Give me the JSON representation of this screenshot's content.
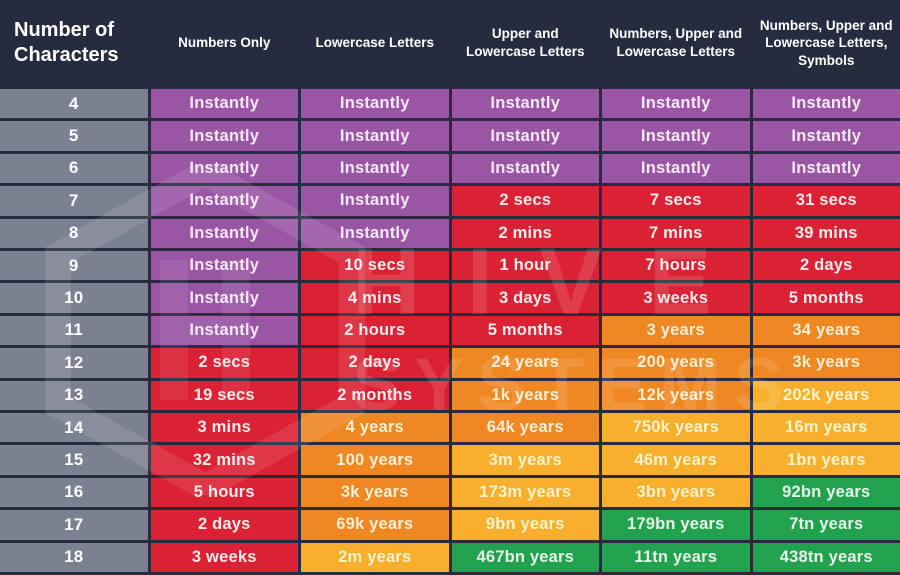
{
  "colors": {
    "background": "#262b40",
    "char_column_gray": "#7c8191",
    "purple": "#9a55a5",
    "red": "#db2134",
    "orange": "#ef8722",
    "yellow": "#f8af2d",
    "green": "#22a14f",
    "header_text": "#ffffff"
  },
  "watermark": {
    "line1": "HIVE",
    "line2": "SYSTEMS"
  },
  "chart_data": {
    "type": "table",
    "columns": [
      "Number of Characters",
      "Numbers Only",
      "Lowercase Letters",
      "Upper and Lowercase Letters",
      "Numbers, Upper and Lowercase Letters",
      "Numbers, Upper and Lowercase Letters, Symbols"
    ],
    "rows": [
      {
        "chars": "4",
        "cells": [
          {
            "text": "Instantly",
            "level": "purple"
          },
          {
            "text": "Instantly",
            "level": "purple"
          },
          {
            "text": "Instantly",
            "level": "purple"
          },
          {
            "text": "Instantly",
            "level": "purple"
          },
          {
            "text": "Instantly",
            "level": "purple"
          }
        ]
      },
      {
        "chars": "5",
        "cells": [
          {
            "text": "Instantly",
            "level": "purple"
          },
          {
            "text": "Instantly",
            "level": "purple"
          },
          {
            "text": "Instantly",
            "level": "purple"
          },
          {
            "text": "Instantly",
            "level": "purple"
          },
          {
            "text": "Instantly",
            "level": "purple"
          }
        ]
      },
      {
        "chars": "6",
        "cells": [
          {
            "text": "Instantly",
            "level": "purple"
          },
          {
            "text": "Instantly",
            "level": "purple"
          },
          {
            "text": "Instantly",
            "level": "purple"
          },
          {
            "text": "Instantly",
            "level": "purple"
          },
          {
            "text": "Instantly",
            "level": "purple"
          }
        ]
      },
      {
        "chars": "7",
        "cells": [
          {
            "text": "Instantly",
            "level": "purple"
          },
          {
            "text": "Instantly",
            "level": "purple"
          },
          {
            "text": "2 secs",
            "level": "red"
          },
          {
            "text": "7 secs",
            "level": "red"
          },
          {
            "text": "31 secs",
            "level": "red"
          }
        ]
      },
      {
        "chars": "8",
        "cells": [
          {
            "text": "Instantly",
            "level": "purple"
          },
          {
            "text": "Instantly",
            "level": "purple"
          },
          {
            "text": "2 mins",
            "level": "red"
          },
          {
            "text": "7 mins",
            "level": "red"
          },
          {
            "text": "39 mins",
            "level": "red"
          }
        ]
      },
      {
        "chars": "9",
        "cells": [
          {
            "text": "Instantly",
            "level": "purple"
          },
          {
            "text": "10 secs",
            "level": "red"
          },
          {
            "text": "1 hour",
            "level": "red"
          },
          {
            "text": "7 hours",
            "level": "red"
          },
          {
            "text": "2 days",
            "level": "red"
          }
        ]
      },
      {
        "chars": "10",
        "cells": [
          {
            "text": "Instantly",
            "level": "purple"
          },
          {
            "text": "4 mins",
            "level": "red"
          },
          {
            "text": "3 days",
            "level": "red"
          },
          {
            "text": "3 weeks",
            "level": "red"
          },
          {
            "text": "5 months",
            "level": "red"
          }
        ]
      },
      {
        "chars": "11",
        "cells": [
          {
            "text": "Instantly",
            "level": "purple"
          },
          {
            "text": "2 hours",
            "level": "red"
          },
          {
            "text": "5 months",
            "level": "red"
          },
          {
            "text": "3 years",
            "level": "orange"
          },
          {
            "text": "34 years",
            "level": "orange"
          }
        ]
      },
      {
        "chars": "12",
        "cells": [
          {
            "text": "2 secs",
            "level": "red"
          },
          {
            "text": "2 days",
            "level": "red"
          },
          {
            "text": "24 years",
            "level": "orange"
          },
          {
            "text": "200 years",
            "level": "orange"
          },
          {
            "text": "3k years",
            "level": "orange"
          }
        ]
      },
      {
        "chars": "13",
        "cells": [
          {
            "text": "19 secs",
            "level": "red"
          },
          {
            "text": "2 months",
            "level": "red"
          },
          {
            "text": "1k years",
            "level": "orange"
          },
          {
            "text": "12k years",
            "level": "orange"
          },
          {
            "text": "202k years",
            "level": "yellow"
          }
        ]
      },
      {
        "chars": "14",
        "cells": [
          {
            "text": "3 mins",
            "level": "red"
          },
          {
            "text": "4 years",
            "level": "orange"
          },
          {
            "text": "64k years",
            "level": "orange"
          },
          {
            "text": "750k years",
            "level": "yellow"
          },
          {
            "text": "16m years",
            "level": "yellow"
          }
        ]
      },
      {
        "chars": "15",
        "cells": [
          {
            "text": "32 mins",
            "level": "red"
          },
          {
            "text": "100 years",
            "level": "orange"
          },
          {
            "text": "3m years",
            "level": "yellow"
          },
          {
            "text": "46m years",
            "level": "yellow"
          },
          {
            "text": "1bn years",
            "level": "yellow"
          }
        ]
      },
      {
        "chars": "16",
        "cells": [
          {
            "text": "5 hours",
            "level": "red"
          },
          {
            "text": "3k years",
            "level": "orange"
          },
          {
            "text": "173m years",
            "level": "yellow"
          },
          {
            "text": "3bn years",
            "level": "yellow"
          },
          {
            "text": "92bn years",
            "level": "green"
          }
        ]
      },
      {
        "chars": "17",
        "cells": [
          {
            "text": "2 days",
            "level": "red"
          },
          {
            "text": "69k years",
            "level": "orange"
          },
          {
            "text": "9bn years",
            "level": "yellow"
          },
          {
            "text": "179bn years",
            "level": "green"
          },
          {
            "text": "7tn years",
            "level": "green"
          }
        ]
      },
      {
        "chars": "18",
        "cells": [
          {
            "text": "3 weeks",
            "level": "red"
          },
          {
            "text": "2m years",
            "level": "yellow"
          },
          {
            "text": "467bn years",
            "level": "green"
          },
          {
            "text": "11tn years",
            "level": "green"
          },
          {
            "text": "438tn years",
            "level": "green"
          }
        ]
      }
    ]
  }
}
